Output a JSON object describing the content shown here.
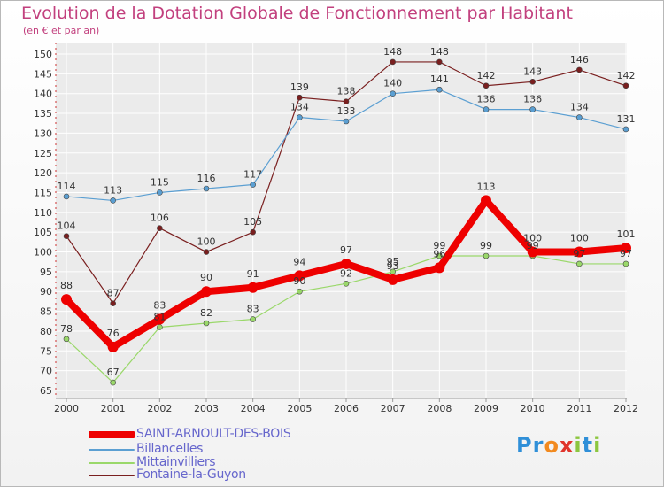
{
  "title": "Evolution de la Dotation Globale de Fonctionnement par Habitant",
  "subtitle": "(en € et par an)",
  "logo": {
    "text": "Proxiti",
    "letters": [
      "P",
      "r",
      "o",
      "x",
      "i",
      "t",
      "i"
    ],
    "colors": [
      "#2f8fd8",
      "#2f8fd8",
      "#f28a1f",
      "#e0342b",
      "#8cc63f",
      "#2f8fd8",
      "#8cc63f"
    ]
  },
  "chart_data": {
    "type": "line",
    "title": "Evolution de la Dotation Globale de Fonctionnement par Habitant",
    "subtitle": "(en € et par an)",
    "xlabel": "",
    "ylabel": "",
    "ylim": [
      65,
      152
    ],
    "yticks": [
      65,
      70,
      75,
      80,
      85,
      90,
      95,
      100,
      105,
      110,
      115,
      120,
      125,
      130,
      135,
      140,
      145,
      150
    ],
    "grid": true,
    "legend_position": "bottom-left",
    "categories": [
      "2000",
      "2001",
      "2002",
      "2003",
      "2004",
      "2005",
      "2006",
      "2007",
      "2008",
      "2009",
      "2010",
      "2011",
      "2012"
    ],
    "series": [
      {
        "name": "Fontaine-la-Guyon",
        "color": "#7a1f1f",
        "width": 1.2,
        "point_r": 3,
        "values": [
          104,
          87,
          106,
          100,
          105,
          139,
          138,
          148,
          148,
          142,
          143,
          146,
          142
        ],
        "labels": [
          "104",
          "87",
          "106",
          "100",
          "105",
          "139",
          "138",
          "148",
          "148",
          "142",
          "143",
          "146",
          "142"
        ]
      },
      {
        "name": "Billancelles",
        "color": "#5b9fd2",
        "width": 1.2,
        "point_r": 3,
        "values": [
          114,
          113,
          115,
          116,
          117,
          134,
          133,
          140,
          141,
          136,
          136,
          134,
          131
        ],
        "labels": [
          "114",
          "113",
          "115",
          "116",
          "117",
          "134",
          "133",
          "140",
          "141",
          "136",
          "136",
          "134",
          "131"
        ]
      },
      {
        "name": "Mittainvilliers",
        "color": "#9ad86a",
        "width": 1.2,
        "point_r": 3,
        "values": [
          78,
          67,
          81,
          82,
          83,
          90,
          92,
          95,
          99,
          99,
          99,
          97,
          97
        ],
        "labels": [
          "78",
          "67",
          "81",
          "82",
          "83",
          "90",
          "92",
          "95",
          "99",
          "99",
          "99",
          "97",
          "97"
        ]
      },
      {
        "name": "SAINT-ARNOULT-DES-BOIS",
        "color": "#ee0000",
        "width": 8,
        "point_r": 6,
        "values": [
          88,
          76,
          83,
          90,
          91,
          94,
          97,
          93,
          96,
          113,
          100,
          100,
          101
        ],
        "labels": [
          "88",
          "76",
          "83",
          "90",
          "91",
          "94",
          "97",
          "93",
          "96",
          "113",
          "100",
          "100",
          "101"
        ]
      }
    ]
  },
  "legend": [
    {
      "label": "SAINT-ARNOULT-DES-BOIS",
      "color": "#ee0000",
      "thick": true
    },
    {
      "label": "Billancelles",
      "color": "#5b9fd2",
      "thick": false
    },
    {
      "label": "Mittainvilliers",
      "color": "#9ad86a",
      "thick": false
    },
    {
      "label": "Fontaine-la-Guyon",
      "color": "#7a1f1f",
      "thick": false
    }
  ]
}
